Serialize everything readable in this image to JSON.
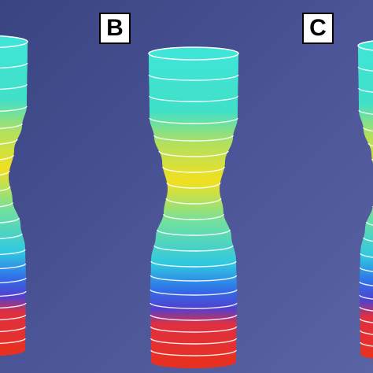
{
  "panels": [
    {
      "label": "B"
    },
    {
      "label": "C"
    }
  ]
}
